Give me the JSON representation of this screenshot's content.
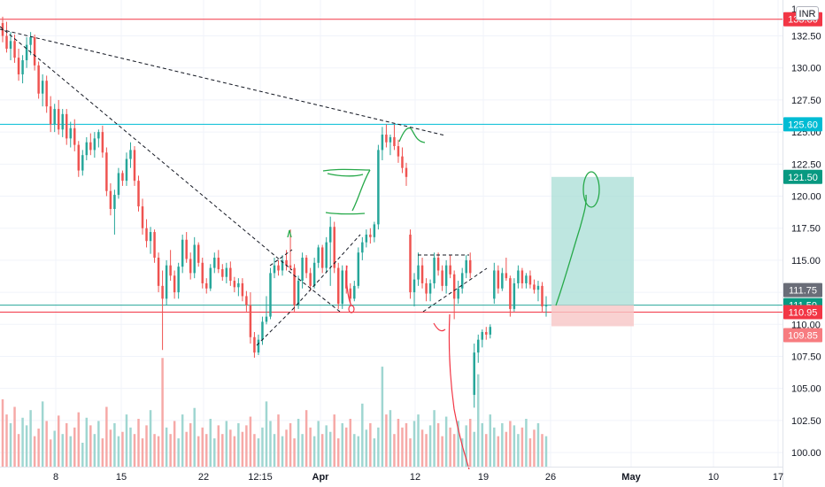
{
  "currency": "INR",
  "colors": {
    "up": "#26a69a",
    "down": "#ef5350",
    "vol_up": "#9fd6d1",
    "vol_down": "#f6a9a7",
    "red_level": "#f23645",
    "cyan_level": "#00bcd4",
    "drawing_green": "#27a94a",
    "drawing_red": "#f23645",
    "target_zone": "#a8ddd5",
    "stop_zone": "#f8c5c5",
    "tag_red": "#f23645",
    "tag_cyan": "#00bcd4",
    "tag_teal": "#089981",
    "tag_grey": "#6a6d78",
    "tag_light_red": "#f77c80"
  },
  "chart_data": {
    "type": "candlestick",
    "ylim": [
      98.9,
      135.3
    ],
    "y_ticks": [
      "132.50",
      "130.00",
      "127.50",
      "125.00",
      "122.50",
      "120.00",
      "117.50",
      "115.00",
      "112.50",
      "110.00",
      "107.50",
      "105.00",
      "102.50",
      "100.00"
    ],
    "y_tick_values": [
      132.5,
      130.0,
      127.5,
      125.0,
      122.5,
      120.0,
      117.5,
      115.0,
      112.5,
      110.0,
      107.5,
      105.0,
      102.5,
      100.0
    ],
    "x_ticks": [
      "8",
      "15",
      "22",
      "12:15",
      "Apr",
      "12",
      "19",
      "26",
      "May",
      "10",
      "17"
    ],
    "x_tick_bold": [
      "Apr",
      "May"
    ],
    "price_tags": [
      {
        "label": "133.80",
        "value": 133.8,
        "color": "#f23645"
      },
      {
        "label": "125.60",
        "value": 125.6,
        "color": "#00bcd4"
      },
      {
        "label": "121.50",
        "value": 121.5,
        "color": "#089981"
      },
      {
        "label": "111.75",
        "value": 111.75,
        "color": "#6a6d78"
      },
      {
        "label": "111.50",
        "value": 111.5,
        "color": "#089981"
      },
      {
        "label": "110.95",
        "value": 110.95,
        "color": "#f23645"
      },
      {
        "label": "109.85",
        "value": 109.85,
        "color": "#f77c80"
      }
    ],
    "horizontal_levels": [
      {
        "value": 133.8,
        "color": "#f23645"
      },
      {
        "value": 125.6,
        "color": "#00bcd4"
      },
      {
        "value": 110.95,
        "color": "#f23645"
      },
      {
        "value": 111.5,
        "color": "#26a69a"
      }
    ],
    "candles": [
      [
        133.5,
        134.0,
        132.0,
        132.5
      ],
      [
        132.5,
        133.6,
        131.2,
        131.5
      ],
      [
        131.5,
        132.8,
        130.6,
        132.1
      ],
      [
        132.1,
        132.6,
        130.4,
        130.8
      ],
      [
        130.8,
        131.5,
        129.0,
        129.5
      ],
      [
        129.5,
        131.0,
        128.8,
        130.6
      ],
      [
        130.6,
        132.4,
        130.0,
        131.8
      ],
      [
        131.8,
        132.8,
        131.0,
        132.4
      ],
      [
        132.4,
        132.6,
        129.8,
        130.2
      ],
      [
        130.2,
        130.5,
        127.6,
        128.0
      ],
      [
        128.0,
        129.5,
        127.0,
        129.0
      ],
      [
        129.0,
        129.4,
        126.5,
        127.0
      ],
      [
        127.0,
        127.8,
        125.0,
        125.6
      ],
      [
        125.6,
        127.2,
        125.0,
        126.8
      ],
      [
        126.8,
        127.5,
        124.8,
        125.2
      ],
      [
        125.2,
        126.8,
        124.6,
        126.4
      ],
      [
        126.4,
        126.8,
        124.0,
        124.5
      ],
      [
        124.5,
        125.8,
        123.8,
        125.3
      ],
      [
        125.3,
        126.0,
        123.5,
        124.0
      ],
      [
        124.0,
        124.3,
        121.5,
        122.0
      ],
      [
        122.0,
        123.6,
        121.6,
        123.2
      ],
      [
        123.2,
        124.6,
        122.8,
        124.2
      ],
      [
        124.2,
        124.9,
        123.2,
        123.6
      ],
      [
        123.6,
        125.0,
        123.0,
        124.5
      ],
      [
        124.5,
        125.2,
        123.8,
        125.0
      ],
      [
        125.0,
        125.5,
        123.0,
        123.4
      ],
      [
        123.4,
        123.8,
        120.0,
        120.4
      ],
      [
        120.4,
        121.0,
        118.5,
        119.0
      ],
      [
        119.0,
        120.5,
        117.0,
        120.1
      ],
      [
        120.1,
        122.2,
        119.8,
        121.8
      ],
      [
        121.8,
        122.0,
        120.8,
        121.2
      ],
      [
        121.2,
        123.4,
        120.8,
        122.9
      ],
      [
        122.9,
        124.2,
        122.2,
        123.6
      ],
      [
        123.6,
        123.9,
        120.8,
        121.2
      ],
      [
        121.2,
        121.6,
        118.8,
        119.2
      ],
      [
        119.2,
        119.8,
        117.0,
        117.5
      ],
      [
        117.5,
        118.2,
        116.0,
        116.5
      ],
      [
        116.5,
        117.6,
        115.5,
        117.2
      ],
      [
        117.2,
        117.4,
        114.8,
        115.2
      ],
      [
        115.2,
        115.6,
        112.5,
        113.0
      ],
      [
        113.0,
        114.2,
        108.0,
        112.0
      ],
      [
        112.0,
        115.0,
        111.5,
        114.6
      ],
      [
        114.6,
        115.8,
        113.4,
        113.8
      ],
      [
        113.8,
        114.2,
        112.0,
        112.5
      ],
      [
        112.5,
        114.8,
        112.0,
        114.5
      ],
      [
        114.5,
        117.0,
        114.0,
        116.6
      ],
      [
        116.6,
        117.2,
        114.8,
        115.1
      ],
      [
        115.1,
        115.6,
        113.5,
        114.0
      ],
      [
        114.0,
        116.8,
        113.6,
        116.2
      ],
      [
        116.2,
        116.4,
        114.5,
        114.8
      ],
      [
        114.8,
        115.2,
        112.8,
        113.2
      ],
      [
        113.2,
        113.6,
        112.4,
        112.8
      ],
      [
        112.8,
        114.7,
        112.6,
        114.4
      ],
      [
        114.4,
        115.6,
        114.0,
        115.2
      ],
      [
        115.2,
        115.8,
        114.0,
        114.3
      ],
      [
        114.3,
        114.7,
        113.4,
        113.7
      ],
      [
        113.7,
        114.8,
        113.2,
        114.4
      ],
      [
        114.4,
        114.9,
        113.0,
        113.4
      ],
      [
        113.4,
        113.7,
        112.5,
        112.9
      ],
      [
        112.9,
        113.6,
        112.2,
        113.2
      ],
      [
        113.2,
        113.6,
        111.8,
        112.2
      ],
      [
        112.2,
        112.6,
        111.0,
        111.5
      ],
      [
        111.5,
        112.5,
        108.5,
        109.0
      ],
      [
        109.0,
        109.4,
        107.4,
        107.8
      ],
      [
        107.8,
        109.2,
        107.6,
        108.8
      ],
      [
        108.8,
        110.6,
        108.4,
        110.2
      ],
      [
        110.2,
        112.2,
        110.0,
        110.6
      ],
      [
        110.6,
        114.4,
        110.4,
        114.0
      ],
      [
        114.0,
        115.2,
        113.6,
        114.6
      ],
      [
        114.6,
        115.0,
        113.8,
        114.2
      ],
      [
        114.2,
        115.4,
        113.8,
        115.0
      ],
      [
        115.0,
        115.8,
        114.2,
        114.6
      ],
      [
        114.6,
        117.4,
        114.2,
        114.4
      ],
      [
        114.4,
        114.7,
        111.0,
        111.5
      ],
      [
        111.5,
        113.8,
        111.2,
        113.4
      ],
      [
        113.4,
        115.6,
        112.8,
        115.2
      ],
      [
        115.2,
        115.4,
        113.6,
        114.0
      ],
      [
        114.0,
        114.4,
        112.6,
        113.0
      ],
      [
        113.0,
        115.2,
        112.8,
        114.8
      ],
      [
        114.8,
        116.2,
        114.4,
        116.0
      ],
      [
        116.0,
        116.2,
        114.0,
        114.4
      ],
      [
        114.4,
        116.8,
        114.0,
        116.4
      ],
      [
        116.4,
        118.4,
        113.0,
        117.6
      ],
      [
        117.6,
        118.0,
        114.0,
        114.4
      ],
      [
        114.4,
        114.8,
        111.2,
        111.6
      ],
      [
        111.6,
        114.6,
        111.2,
        114.2
      ],
      [
        114.2,
        114.6,
        112.4,
        112.8
      ],
      [
        112.8,
        113.2,
        111.6,
        112.0
      ],
      [
        112.0,
        113.4,
        111.8,
        113.0
      ],
      [
        113.0,
        116.0,
        112.8,
        115.6
      ],
      [
        115.6,
        116.8,
        115.0,
        116.4
      ],
      [
        116.4,
        117.4,
        116.0,
        117.0
      ],
      [
        117.0,
        117.5,
        116.3,
        116.8
      ],
      [
        116.8,
        118.0,
        116.4,
        117.8
      ],
      [
        117.8,
        124.0,
        117.4,
        123.6
      ],
      [
        123.6,
        125.4,
        122.8,
        124.8
      ],
      [
        124.8,
        125.6,
        123.8,
        124.2
      ],
      [
        124.2,
        124.8,
        123.2,
        124.6
      ],
      [
        124.6,
        125.6,
        123.6,
        123.9
      ],
      [
        123.9,
        124.4,
        122.6,
        123.1
      ],
      [
        123.1,
        123.8,
        121.8,
        122.2
      ],
      [
        122.2,
        122.6,
        120.8,
        121.5
      ],
      [
        117.0,
        117.4,
        112.0,
        112.5
      ],
      [
        112.5,
        114.0,
        111.4,
        113.5
      ],
      [
        113.5,
        115.6,
        113.0,
        114.6
      ],
      [
        114.6,
        115.2,
        112.8,
        113.2
      ],
      [
        113.2,
        113.6,
        111.8,
        112.4
      ],
      [
        112.4,
        113.5,
        111.8,
        113.2
      ],
      [
        113.2,
        115.6,
        112.8,
        115.2
      ],
      [
        115.2,
        115.6,
        113.8,
        114.2
      ],
      [
        114.2,
        114.6,
        112.6,
        113.0
      ],
      [
        113.0,
        115.0,
        112.4,
        114.6
      ],
      [
        114.6,
        115.4,
        113.6,
        113.9
      ],
      [
        113.9,
        114.2,
        110.4,
        112.0
      ],
      [
        112.0,
        113.4,
        111.6,
        112.8
      ],
      [
        112.8,
        114.4,
        112.4,
        114.0
      ],
      [
        114.0,
        115.4,
        113.6,
        115.0
      ],
      [
        115.0,
        115.6,
        113.6,
        114.0
      ],
      [
        104.5,
        108.5,
        103.5,
        107.8
      ],
      [
        107.8,
        109.2,
        107.0,
        108.8
      ],
      [
        108.8,
        109.6,
        108.2,
        109.4
      ],
      [
        109.4,
        109.8,
        108.8,
        109.2
      ],
      [
        109.2,
        110.0,
        108.9,
        109.8
      ],
      [
        112.0,
        114.8,
        111.6,
        114.2
      ],
      [
        114.2,
        114.6,
        112.4,
        112.8
      ],
      [
        112.8,
        114.4,
        112.6,
        114.0
      ],
      [
        114.0,
        115.2,
        113.4,
        113.6
      ],
      [
        113.6,
        113.8,
        110.6,
        111.2
      ],
      [
        111.2,
        113.6,
        111.0,
        113.2
      ],
      [
        113.2,
        114.6,
        112.8,
        114.2
      ],
      [
        114.2,
        114.4,
        112.8,
        113.2
      ],
      [
        113.2,
        114.0,
        112.8,
        113.8
      ],
      [
        113.8,
        114.2,
        112.8,
        113.1
      ],
      [
        113.1,
        113.5,
        112.4,
        112.7
      ],
      [
        112.7,
        113.4,
        111.8,
        113.0
      ],
      [
        113.0,
        113.3,
        111.0,
        111.4
      ],
      [
        111.4,
        112.2,
        110.6,
        111.5
      ]
    ],
    "volume_ylim": [
      0,
      110
    ],
    "volumes": [
      62,
      48,
      40,
      55,
      30,
      45,
      38,
      52,
      28,
      35,
      60,
      42,
      25,
      33,
      47,
      30,
      40,
      28,
      36,
      50,
      22,
      45,
      38,
      30,
      42,
      26,
      55,
      34,
      40,
      28,
      32,
      48,
      36,
      30,
      44,
      26,
      38,
      52,
      30,
      28,
      100,
      36,
      30,
      42,
      26,
      48,
      32,
      40,
      54,
      28,
      36,
      30,
      44,
      26,
      38,
      30,
      42,
      34,
      28,
      40,
      32,
      38,
      46,
      30,
      26,
      36,
      60,
      42,
      30,
      48,
      28,
      34,
      40,
      26,
      44,
      30,
      52,
      36,
      28,
      42,
      30,
      38,
      32,
      48,
      26,
      40,
      36,
      44,
      30,
      28,
      58,
      34,
      40,
      26,
      36,
      92,
      48,
      52,
      30,
      44,
      36,
      40,
      26,
      42,
      48,
      34,
      30,
      38,
      52,
      40,
      28,
      46,
      36,
      30,
      42,
      26,
      38,
      44,
      32,
      85,
      40,
      30,
      48,
      36,
      28,
      40,
      32,
      42,
      38,
      30,
      36,
      44,
      26,
      34,
      40,
      30,
      28
    ]
  }
}
